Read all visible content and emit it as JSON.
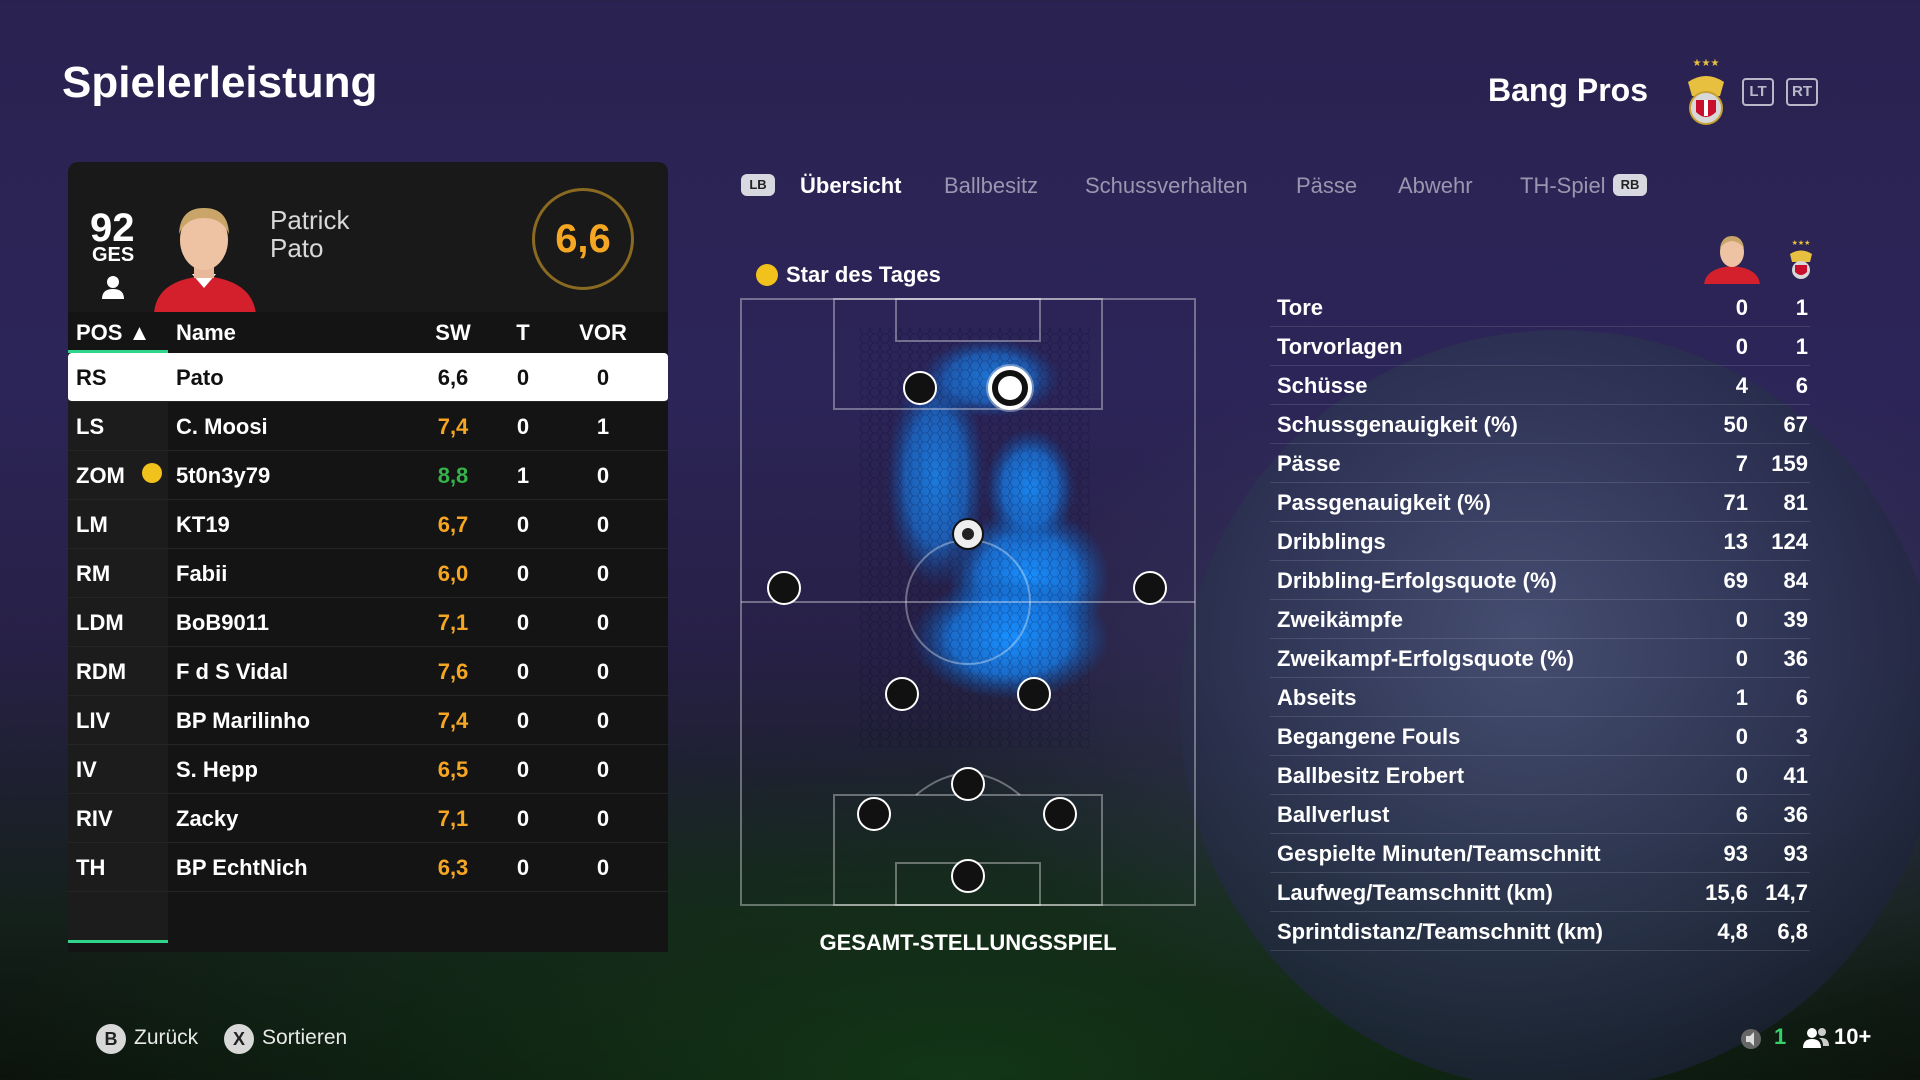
{
  "page": {
    "title": "Spielerleistung",
    "team_name": "Bang Pros",
    "trigger_left": "LT",
    "trigger_right": "RT"
  },
  "player_card": {
    "overall": "92",
    "overall_label": "GES",
    "first_name": "Patrick",
    "last_name": "Pato",
    "rating": "6,6"
  },
  "table": {
    "headers": {
      "pos": "POS ▲",
      "name": "Name",
      "sw": "SW",
      "t": "T",
      "vor": "VOR"
    },
    "rows": [
      {
        "pos": "RS",
        "name": "Pato",
        "sw": "6,6",
        "t": "0",
        "vor": "0",
        "sw_color": "#111111"
      },
      {
        "pos": "LS",
        "name": "C. Moosi",
        "sw": "7,4",
        "t": "0",
        "vor": "1",
        "sw_color": "#f5a623"
      },
      {
        "pos": "ZOM",
        "name": "5t0n3y79",
        "sw": "8,8",
        "t": "1",
        "vor": "0",
        "sw_color": "#35b34a",
        "star": true
      },
      {
        "pos": "LM",
        "name": "KT19",
        "sw": "6,7",
        "t": "0",
        "vor": "0",
        "sw_color": "#f5a623"
      },
      {
        "pos": "RM",
        "name": "Fabii",
        "sw": "6,0",
        "t": "0",
        "vor": "0",
        "sw_color": "#f5a623"
      },
      {
        "pos": "LDM",
        "name": "BoB9011",
        "sw": "7,1",
        "t": "0",
        "vor": "0",
        "sw_color": "#f5a623"
      },
      {
        "pos": "RDM",
        "name": "F d S Vidal",
        "sw": "7,6",
        "t": "0",
        "vor": "0",
        "sw_color": "#f5a623"
      },
      {
        "pos": "LIV",
        "name": "BP Marilinho",
        "sw": "7,4",
        "t": "0",
        "vor": "0",
        "sw_color": "#f5a623"
      },
      {
        "pos": "IV",
        "name": "S. Hepp",
        "sw": "6,5",
        "t": "0",
        "vor": "0",
        "sw_color": "#f5a623"
      },
      {
        "pos": "RIV",
        "name": "Zacky",
        "sw": "7,1",
        "t": "0",
        "vor": "0",
        "sw_color": "#f5a623"
      },
      {
        "pos": "TH",
        "name": "BP EchtNich",
        "sw": "6,3",
        "t": "0",
        "vor": "0",
        "sw_color": "#f5a623"
      }
    ]
  },
  "tabs": {
    "lb": "LB",
    "rb": "RB",
    "items": [
      "Übersicht",
      "Ballbesitz",
      "Schussverhalten",
      "Pässe",
      "Abwehr",
      "TH-Spiel"
    ],
    "active": "Übersicht"
  },
  "pitch": {
    "star_label": "Star des Tages",
    "caption": "GESAMT-STELLUNGSSPIEL"
  },
  "stats": {
    "rows": [
      {
        "label": "Tore",
        "player": "0",
        "team": "1"
      },
      {
        "label": "Torvorlagen",
        "player": "0",
        "team": "1"
      },
      {
        "label": "Schüsse",
        "player": "4",
        "team": "6"
      },
      {
        "label": "Schussgenauigkeit (%)",
        "player": "50",
        "team": "67"
      },
      {
        "label": "Pässe",
        "player": "7",
        "team": "159"
      },
      {
        "label": "Passgenauigkeit (%)",
        "player": "71",
        "team": "81"
      },
      {
        "label": "Dribblings",
        "player": "13",
        "team": "124"
      },
      {
        "label": "Dribbling-Erfolgsquote (%)",
        "player": "69",
        "team": "84"
      },
      {
        "label": "Zweikämpfe",
        "player": "0",
        "team": "39"
      },
      {
        "label": "Zweikampf-Erfolgsquote (%)",
        "player": "0",
        "team": "36"
      },
      {
        "label": "Abseits",
        "player": "1",
        "team": "6"
      },
      {
        "label": "Begangene Fouls",
        "player": "0",
        "team": "3"
      },
      {
        "label": "Ballbesitz Erobert",
        "player": "0",
        "team": "41"
      },
      {
        "label": "Ballverlust",
        "player": "6",
        "team": "36"
      },
      {
        "label": "Gespielte Minuten/Teamschnitt",
        "player": "93",
        "team": "93"
      },
      {
        "label": "Laufweg/Teamschnitt (km)",
        "player": "15,6",
        "team": "14,7"
      },
      {
        "label": "Sprintdistanz/Teamschnitt (km)",
        "player": "4,8",
        "team": "6,8"
      }
    ]
  },
  "footer": {
    "back_key": "B",
    "back_label": "Zurück",
    "sort_key": "X",
    "sort_label": "Sortieren",
    "count_a": "1",
    "count_b": "10+"
  },
  "colors": {
    "accent_green": "#2fd58a",
    "rating_orange": "#f5a623",
    "rating_green": "#35b34a"
  }
}
